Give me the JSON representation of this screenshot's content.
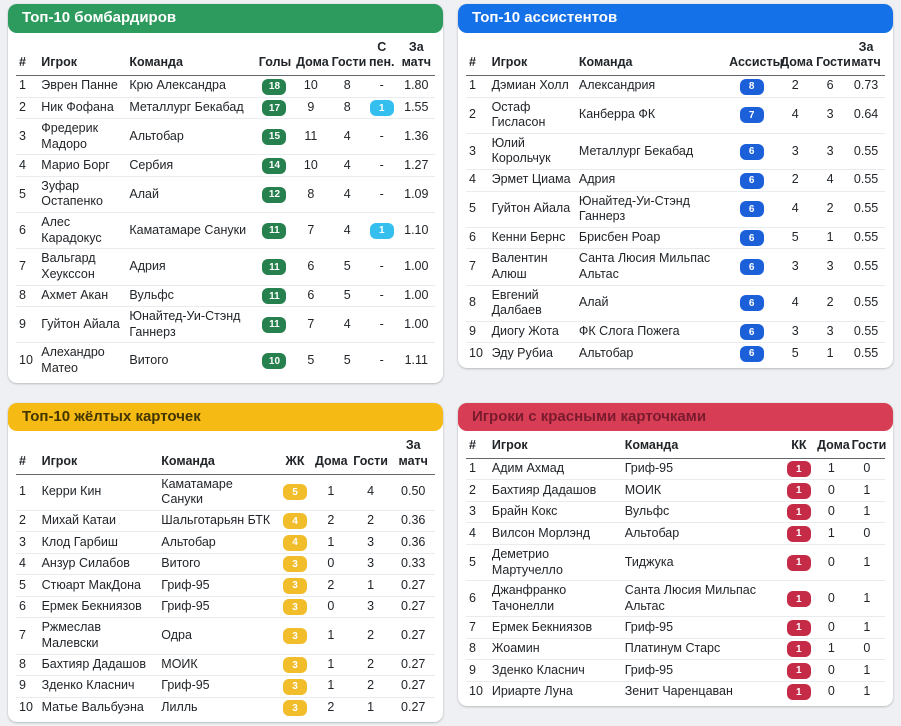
{
  "tables": [
    {
      "title": "Топ-10 бомбардиров",
      "theme": {
        "header_bg": "#2d9a5e",
        "header_text": "#ffffff"
      },
      "columns": [
        {
          "key": "rank",
          "label": "#"
        },
        {
          "key": "player",
          "label": "Игрок"
        },
        {
          "key": "team",
          "label": "Команда"
        },
        {
          "key": "goals",
          "label": "Голы",
          "type": "badge",
          "badge_color": "#27814e"
        },
        {
          "key": "home",
          "label": "Дома"
        },
        {
          "key": "away",
          "label": "Гости"
        },
        {
          "key": "pen",
          "label": "С пен.",
          "type": "badge",
          "badge_color": "#35bfee"
        },
        {
          "key": "match",
          "label": "За матч"
        }
      ],
      "rows": [
        [
          "1",
          "Эврен Панне",
          "Крю Александра",
          "18",
          "10",
          "8",
          "-",
          "1.80"
        ],
        [
          "2",
          "Ник Фофана",
          "Металлург Бекабад",
          "17",
          "9",
          "8",
          "1",
          "1.55"
        ],
        [
          "3",
          "Фредерик Мадоро",
          "Альтобар",
          "15",
          "11",
          "4",
          "-",
          "1.36"
        ],
        [
          "4",
          "Марио Борг",
          "Сербия",
          "14",
          "10",
          "4",
          "-",
          "1.27"
        ],
        [
          "5",
          "Зуфар Остапенко",
          "Алай",
          "12",
          "8",
          "4",
          "-",
          "1.09"
        ],
        [
          "6",
          "Алес Карадокус",
          "Каматамаре Сануки",
          "11",
          "7",
          "4",
          "1",
          "1.10"
        ],
        [
          "7",
          "Вальгард Хеукссон",
          "Адрия",
          "11",
          "6",
          "5",
          "-",
          "1.00"
        ],
        [
          "8",
          "Ахмет Акан",
          "Вульфс",
          "11",
          "6",
          "5",
          "-",
          "1.00"
        ],
        [
          "9",
          "Гуйтон Айала",
          "Юнайтед-Уи-Стэнд Ганнерз",
          "11",
          "7",
          "4",
          "-",
          "1.00"
        ],
        [
          "10",
          "Алехандро Матео",
          "Витого",
          "10",
          "5",
          "5",
          "-",
          "1.11"
        ]
      ]
    },
    {
      "title": "Топ-10 ассистентов",
      "theme": {
        "header_bg": "#1571e8",
        "header_text": "#ffffff"
      },
      "columns": [
        {
          "key": "rank",
          "label": "#"
        },
        {
          "key": "player",
          "label": "Игрок"
        },
        {
          "key": "team",
          "label": "Команда"
        },
        {
          "key": "assists",
          "label": "Ассисты",
          "type": "badge",
          "badge_color": "#1b60d9"
        },
        {
          "key": "home",
          "label": "Дома"
        },
        {
          "key": "away",
          "label": "Гости"
        },
        {
          "key": "match",
          "label": "За матч"
        }
      ],
      "rows": [
        [
          "1",
          "Дэмиан Холл",
          "Александрия",
          "8",
          "2",
          "6",
          "0.73"
        ],
        [
          "2",
          "Остаф Гисласон",
          "Канберра ФК",
          "7",
          "4",
          "3",
          "0.64"
        ],
        [
          "3",
          "Юлий Корольчук",
          "Металлург Бекабад",
          "6",
          "3",
          "3",
          "0.55"
        ],
        [
          "4",
          "Эрмет Циама",
          "Адрия",
          "6",
          "2",
          "4",
          "0.55"
        ],
        [
          "5",
          "Гуйтон Айала",
          "Юнайтед-Уи-Стэнд Ганнерз",
          "6",
          "4",
          "2",
          "0.55"
        ],
        [
          "6",
          "Кенни Бернс",
          "Брисбен Роар",
          "6",
          "5",
          "1",
          "0.55"
        ],
        [
          "7",
          "Валентин Алюш",
          "Санта Люсия Мильпас Альтас",
          "6",
          "3",
          "3",
          "0.55"
        ],
        [
          "8",
          "Евгений Далбаев",
          "Алай",
          "6",
          "4",
          "2",
          "0.55"
        ],
        [
          "9",
          "Диогу Жота",
          "ФК Слога Пожега",
          "6",
          "3",
          "3",
          "0.55"
        ],
        [
          "10",
          "Эду Рубиа",
          "Альтобар",
          "6",
          "5",
          "1",
          "0.55"
        ]
      ]
    },
    {
      "title": "Топ-10 жёлтых карточек",
      "theme": {
        "header_bg": "#f5ba13",
        "header_text": "#423500"
      },
      "columns": [
        {
          "key": "rank",
          "label": "#"
        },
        {
          "key": "player",
          "label": "Игрок"
        },
        {
          "key": "team",
          "label": "Команда"
        },
        {
          "key": "yc",
          "label": "ЖК",
          "type": "badge",
          "badge_color": "#f2bd2a"
        },
        {
          "key": "home",
          "label": "Дома"
        },
        {
          "key": "away",
          "label": "Гости"
        },
        {
          "key": "match",
          "label": "За матч"
        }
      ],
      "rows": [
        [
          "1",
          "Керри Кин",
          "Каматамаре Сануки",
          "5",
          "1",
          "4",
          "0.50"
        ],
        [
          "2",
          "Михай Катаи",
          "Шальготарьян БТК",
          "4",
          "2",
          "2",
          "0.36"
        ],
        [
          "3",
          "Клод Гарбиш",
          "Альтобар",
          "4",
          "1",
          "3",
          "0.36"
        ],
        [
          "4",
          "Анзур Силабов",
          "Витого",
          "3",
          "0",
          "3",
          "0.33"
        ],
        [
          "5",
          "Стюарт МакДона",
          "Гриф-95",
          "3",
          "2",
          "1",
          "0.27"
        ],
        [
          "6",
          "Ермек Бекниязов",
          "Гриф-95",
          "3",
          "0",
          "3",
          "0.27"
        ],
        [
          "7",
          "Ржмеслав Малевски",
          "Одра",
          "3",
          "1",
          "2",
          "0.27"
        ],
        [
          "8",
          "Бахтияр Дадашов",
          "МОИК",
          "3",
          "1",
          "2",
          "0.27"
        ],
        [
          "9",
          "Зденко Класнич",
          "Гриф-95",
          "3",
          "1",
          "2",
          "0.27"
        ],
        [
          "10",
          "Матье Вальбуэна",
          "Лилль",
          "3",
          "2",
          "1",
          "0.27"
        ]
      ]
    },
    {
      "title": "Игроки с красными карточками",
      "theme": {
        "header_bg": "#d83d56",
        "header_text": "#7a1b2d"
      },
      "columns": [
        {
          "key": "rank",
          "label": "#"
        },
        {
          "key": "player",
          "label": "Игрок"
        },
        {
          "key": "team",
          "label": "Команда"
        },
        {
          "key": "rc",
          "label": "КК",
          "type": "badge",
          "badge_color": "#c52b47"
        },
        {
          "key": "home",
          "label": "Дома"
        },
        {
          "key": "away",
          "label": "Гости"
        }
      ],
      "rows": [
        [
          "1",
          "Адим Ахмад",
          "Гриф-95",
          "1",
          "1",
          "0"
        ],
        [
          "2",
          "Бахтияр Дадашов",
          "МОИК",
          "1",
          "0",
          "1"
        ],
        [
          "3",
          "Брайн Кокс",
          "Вульфс",
          "1",
          "0",
          "1"
        ],
        [
          "4",
          "Вилсон Морлэнд",
          "Альтобар",
          "1",
          "1",
          "0"
        ],
        [
          "5",
          "Деметрио Мартучелло",
          "Тиджука",
          "1",
          "0",
          "1"
        ],
        [
          "6",
          "Джанфранко Тачонелли",
          "Санта Люсия Мильпас Альтас",
          "1",
          "0",
          "1"
        ],
        [
          "7",
          "Ермек Бекниязов",
          "Гриф-95",
          "1",
          "0",
          "1"
        ],
        [
          "8",
          "Жоамин",
          "Платинум Старс",
          "1",
          "1",
          "0"
        ],
        [
          "9",
          "Зденко Класнич",
          "Гриф-95",
          "1",
          "0",
          "1"
        ],
        [
          "10",
          "Ириарте Луна",
          "Зенит Чаренцаван",
          "1",
          "0",
          "1"
        ]
      ]
    }
  ]
}
